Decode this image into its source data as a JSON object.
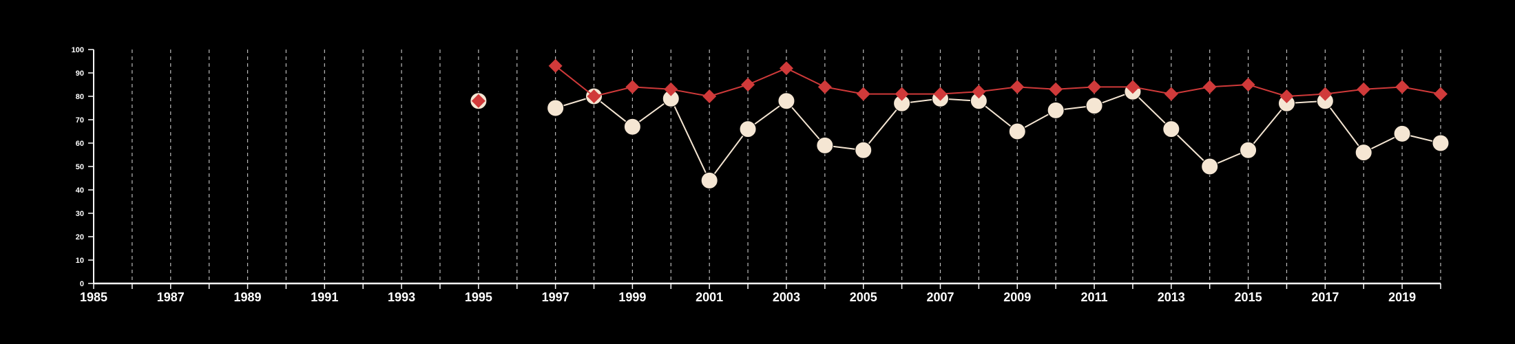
{
  "chart_data": {
    "type": "line",
    "title": "",
    "xlabel": "",
    "ylabel": "",
    "xlim": [
      1985,
      2020
    ],
    "ylim": [
      0,
      100
    ],
    "y_ticks": [
      0,
      10,
      20,
      30,
      40,
      50,
      60,
      70,
      80,
      90,
      100
    ],
    "x_tick_labels": [
      "1985",
      "1987",
      "1989",
      "1991",
      "1993",
      "1995",
      "1997",
      "1999",
      "2001",
      "2003",
      "2005",
      "2007",
      "2009",
      "2011",
      "2013",
      "2015",
      "2017",
      "2019"
    ],
    "vertical_grid": "dashed, every year",
    "horizontal_grid": false,
    "legend": "none",
    "colors": {
      "background": "#000000",
      "axis": "#ffffff",
      "grid": "#bbbbbb",
      "series_circle": "#f5e6d3",
      "series_diamond": "#d03a3a"
    },
    "series": [
      {
        "marker": "circle",
        "color": "#f5e6d3",
        "points": [
          [
            1995,
            78
          ],
          [
            1997,
            75
          ],
          [
            1998,
            80
          ],
          [
            1999,
            67
          ],
          [
            2000,
            79
          ],
          [
            2001,
            44
          ],
          [
            2002,
            66
          ],
          [
            2003,
            78
          ],
          [
            2004,
            59
          ],
          [
            2005,
            57
          ],
          [
            2006,
            77
          ],
          [
            2007,
            79
          ],
          [
            2008,
            78
          ],
          [
            2009,
            65
          ],
          [
            2010,
            74
          ],
          [
            2011,
            76
          ],
          [
            2012,
            82
          ],
          [
            2013,
            66
          ],
          [
            2014,
            50
          ],
          [
            2015,
            57
          ],
          [
            2016,
            77
          ],
          [
            2017,
            78
          ],
          [
            2018,
            56
          ],
          [
            2019,
            64
          ],
          [
            2020,
            60
          ]
        ]
      },
      {
        "marker": "diamond",
        "color": "#d03a3a",
        "points": [
          [
            1995,
            78
          ],
          [
            1997,
            93
          ],
          [
            1998,
            80
          ],
          [
            1999,
            84
          ],
          [
            2000,
            83
          ],
          [
            2001,
            80
          ],
          [
            2002,
            85
          ],
          [
            2003,
            92
          ],
          [
            2004,
            84
          ],
          [
            2005,
            81
          ],
          [
            2006,
            81
          ],
          [
            2007,
            81
          ],
          [
            2008,
            82
          ],
          [
            2009,
            84
          ],
          [
            2010,
            83
          ],
          [
            2011,
            84
          ],
          [
            2012,
            84
          ],
          [
            2013,
            81
          ],
          [
            2014,
            84
          ],
          [
            2015,
            85
          ],
          [
            2016,
            80
          ],
          [
            2017,
            81
          ],
          [
            2018,
            83
          ],
          [
            2019,
            84
          ],
          [
            2020,
            81
          ]
        ]
      }
    ]
  }
}
